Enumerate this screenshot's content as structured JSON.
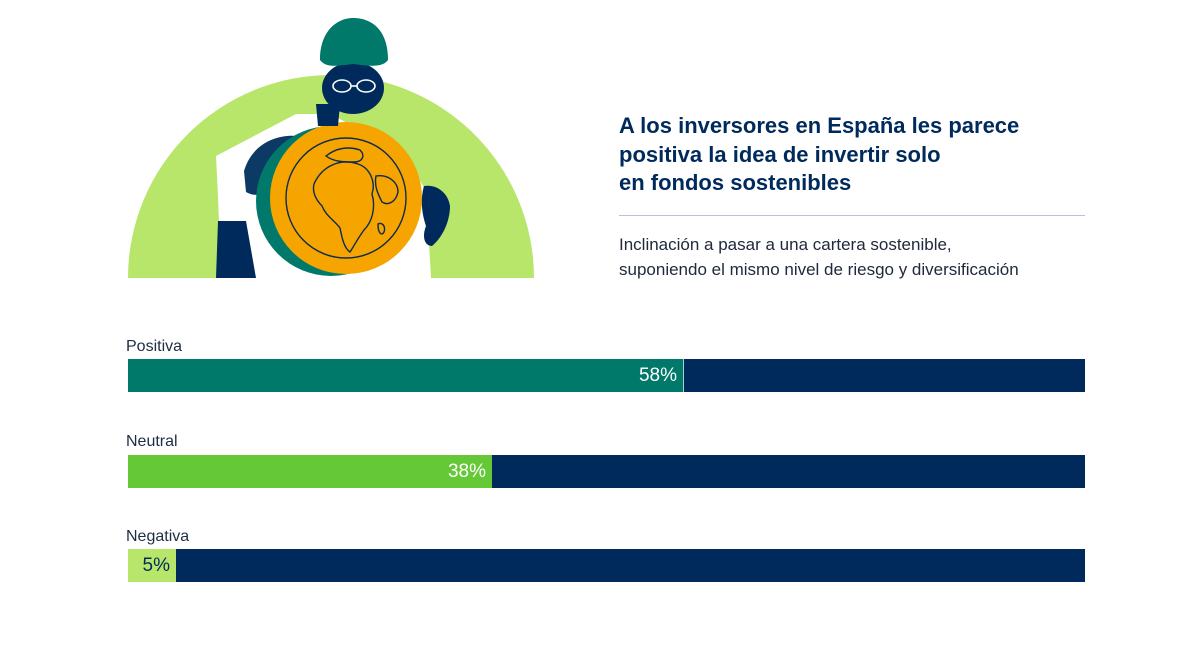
{
  "header": {
    "title_lines": [
      "A los inversores en España les parece",
      "positiva la idea de invertir solo",
      "en fondos sostenibles"
    ],
    "subtitle_lines": [
      "Inclinación a pasar a una cartera sostenible,",
      "suponiendo el mismo nivel de riesgo y diversificación"
    ]
  },
  "illustration": {
    "icon": "investor-holding-globe-icon"
  },
  "colors": {
    "track": "#002a5c",
    "positiva": "#00796b",
    "neutral": "#64c837",
    "negativa": "#b8e66a",
    "label_light": "#ffffff",
    "label_dark": "#002a5c"
  },
  "chart_data": {
    "type": "bar",
    "orientation": "horizontal",
    "categories": [
      "Positiva",
      "Neutral",
      "Negativa"
    ],
    "values": [
      58,
      38,
      5
    ],
    "value_labels": [
      "58%",
      "38%",
      "5%"
    ],
    "xlim": [
      0,
      100
    ],
    "unit": "%",
    "grid": false,
    "legend": "none"
  }
}
